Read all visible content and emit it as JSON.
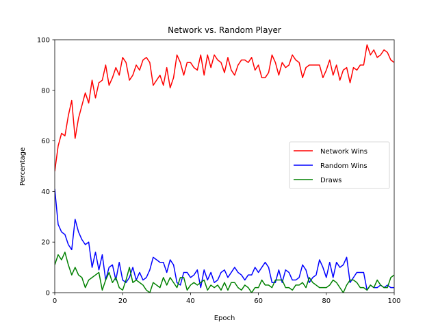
{
  "chart_data": {
    "type": "line",
    "title": "Network vs. Random Player",
    "xlabel": "Epoch",
    "ylabel": "Percentage",
    "xlim": [
      0,
      100
    ],
    "ylim": [
      0,
      100
    ],
    "xticks": [
      0,
      20,
      40,
      60,
      80,
      100
    ],
    "yticks": [
      0,
      20,
      40,
      60,
      80,
      100
    ],
    "grid": false,
    "legend_position": "center-right",
    "series": [
      {
        "name": "Network Wins",
        "color": "#ff0000",
        "values": [
          48,
          58,
          63,
          62,
          70,
          76,
          61,
          69,
          74,
          79,
          75,
          84,
          77,
          83,
          84,
          90,
          82,
          85,
          89,
          86,
          93,
          91,
          84,
          86,
          90,
          88,
          92,
          93,
          91,
          82,
          84,
          86,
          82,
          89,
          81,
          85,
          94,
          91,
          86,
          91,
          91,
          89,
          88,
          94,
          86,
          94,
          89,
          94,
          92,
          91,
          87,
          93,
          88,
          86,
          90,
          92,
          92,
          91,
          93,
          88,
          90,
          85,
          85,
          87,
          94,
          91,
          86,
          91,
          89,
          90,
          94,
          92,
          91,
          85,
          89,
          90,
          90,
          90,
          90,
          85,
          88,
          92,
          86,
          90,
          84,
          88,
          89,
          83,
          89,
          88,
          90,
          90,
          98,
          94,
          96,
          93,
          94,
          96,
          95,
          92,
          91
        ]
      },
      {
        "name": "Random Wins",
        "color": "#0000ff",
        "values": [
          41,
          27,
          24,
          23,
          19,
          17,
          29,
          24,
          21,
          19,
          20,
          10,
          16,
          9,
          15,
          5,
          10,
          11,
          5,
          12,
          5,
          4,
          6,
          10,
          5,
          8,
          5,
          6,
          9,
          14,
          13,
          12,
          12,
          8,
          13,
          11,
          4,
          3,
          8,
          8,
          6,
          7,
          9,
          2,
          9,
          5,
          8,
          4,
          5,
          8,
          9,
          6,
          8,
          10,
          8,
          7,
          5,
          7,
          7,
          10,
          8,
          10,
          12,
          10,
          4,
          4,
          9,
          4,
          9,
          8,
          5,
          5,
          6,
          11,
          9,
          4,
          6,
          7,
          13,
          10,
          6,
          12,
          6,
          12,
          10,
          11,
          14,
          4,
          6,
          8,
          8,
          8,
          1,
          3,
          2,
          2,
          3,
          2,
          3,
          2,
          2
        ]
      },
      {
        "name": "Draws",
        "color": "#008000",
        "values": [
          11,
          15,
          13,
          16,
          11,
          7,
          10,
          7,
          6,
          2,
          5,
          6,
          7,
          8,
          1,
          5,
          8,
          4,
          6,
          2,
          1,
          5,
          10,
          4,
          5,
          4,
          3,
          1,
          0,
          4,
          3,
          2,
          6,
          3,
          6,
          4,
          2,
          6,
          6,
          1,
          3,
          4,
          3,
          4,
          5,
          1,
          3,
          2,
          3,
          1,
          4,
          1,
          4,
          4,
          2,
          1,
          3,
          2,
          0,
          2,
          2,
          5,
          3,
          3,
          2,
          5,
          5,
          5,
          2,
          2,
          1,
          3,
          3,
          4,
          2,
          6,
          4,
          3,
          2,
          2,
          2,
          3,
          5,
          4,
          2,
          0,
          3,
          5,
          5,
          4,
          2,
          2,
          1,
          3,
          2,
          5,
          3,
          2,
          2,
          6,
          7
        ]
      }
    ]
  }
}
